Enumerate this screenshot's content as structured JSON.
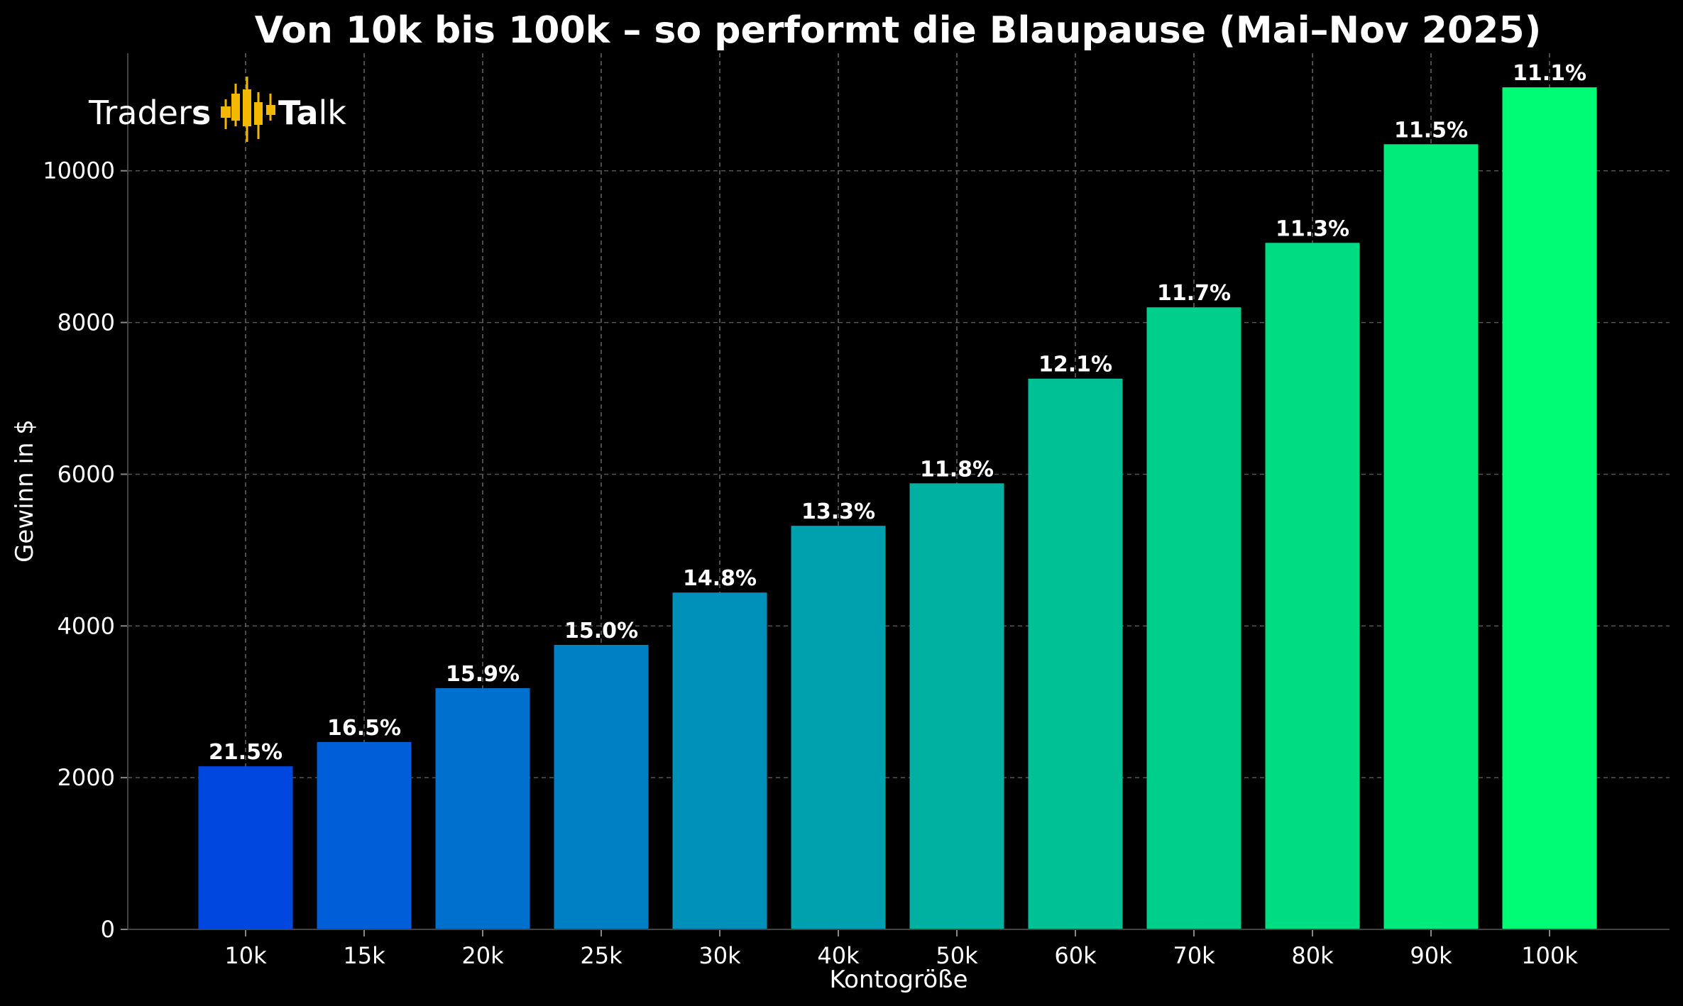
{
  "chart_data": {
    "type": "bar",
    "title": "Von 10k bis 100k – so performt die Blaupause (Mai–Nov 2025)",
    "xlabel": "Kontogröße",
    "ylabel": "Gewinn in $",
    "categories": [
      "10k",
      "15k",
      "20k",
      "25k",
      "30k",
      "40k",
      "50k",
      "60k",
      "70k",
      "80k",
      "90k",
      "100k"
    ],
    "values": [
      2150,
      2470,
      3180,
      3750,
      4440,
      5320,
      5880,
      7260,
      8200,
      9050,
      10350,
      11100
    ],
    "data_labels": [
      "21.5%",
      "16.5%",
      "15.9%",
      "15.0%",
      "14.8%",
      "13.3%",
      "11.8%",
      "12.1%",
      "11.7%",
      "11.3%",
      "11.5%",
      "11.1%"
    ],
    "colors": [
      "#0047E0",
      "#005FD8",
      "#0070CF",
      "#0080C4",
      "#0091BA",
      "#00A1AE",
      "#00B1A2",
      "#00C096",
      "#00CF8C",
      "#00DC82",
      "#00EB7A",
      "#00FB75"
    ],
    "ylim": [
      0,
      11550
    ],
    "yticks": [
      0,
      2000,
      4000,
      6000,
      8000,
      10000
    ],
    "grid": true,
    "background": "#000000"
  },
  "logo": {
    "part1": "Trader",
    "part2": "s",
    "part3": "T",
    "part4": "a",
    "part5": "lk",
    "accent": "#F5B800"
  }
}
